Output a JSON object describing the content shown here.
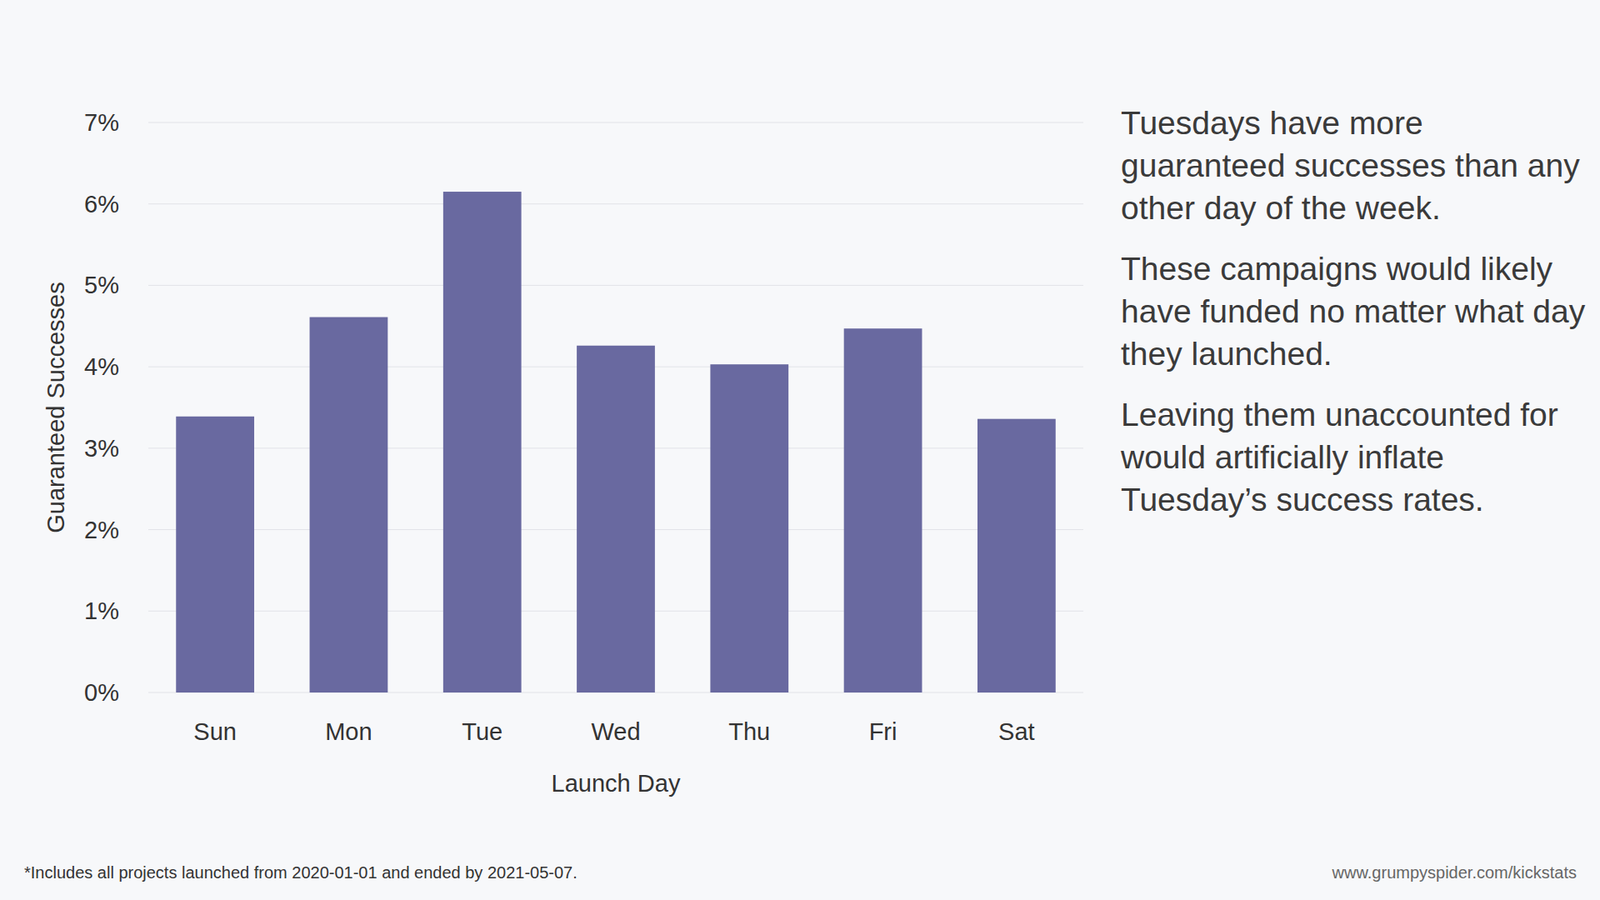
{
  "chart_data": {
    "type": "bar",
    "categories": [
      "Sun",
      "Mon",
      "Tue",
      "Wed",
      "Thu",
      "Fri",
      "Sat"
    ],
    "values": [
      3.39,
      4.61,
      6.15,
      4.26,
      4.03,
      4.47,
      3.36
    ],
    "color": "#6969a0",
    "x_label": "Launch Day",
    "y_label": "Guaranteed Successes",
    "ylim": [
      0,
      7
    ],
    "yticks": [
      {
        "value": 0,
        "label": "0%"
      },
      {
        "value": 1,
        "label": "1%"
      },
      {
        "value": 2,
        "label": "2%"
      },
      {
        "value": 3,
        "label": "3%"
      },
      {
        "value": 4,
        "label": "4%"
      },
      {
        "value": 5,
        "label": "5%"
      },
      {
        "value": 6,
        "label": "6%"
      },
      {
        "value": 7,
        "label": "7%"
      }
    ],
    "grid": true,
    "annotations": [
      "Tuesdays have more guaranteed successes than any other day of the week.",
      "These campaigns would likely have funded no matter what day they launched.",
      "Leaving them unaccounted for would artificially inflate Tuesday’s success rates."
    ],
    "footnote": "*Includes all projects launched from 2020-01-01 and ended by 2021-05-07.",
    "source": "www.grumpyspider.com/kickstats"
  }
}
